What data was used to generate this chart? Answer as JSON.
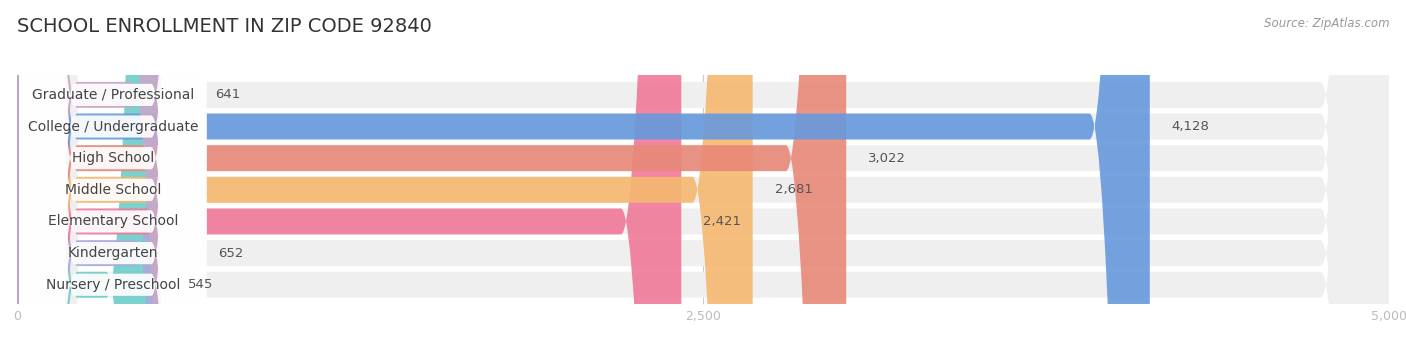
{
  "title": "School Enrollment in Zip Code 92840",
  "source": "Source: ZipAtlas.com",
  "categories": [
    "Nursery / Preschool",
    "Kindergarten",
    "Elementary School",
    "Middle School",
    "High School",
    "College / Undergraduate",
    "Graduate / Professional"
  ],
  "values": [
    545,
    652,
    2421,
    2681,
    3022,
    4128,
    641
  ],
  "bar_colors": [
    "#6dccc8",
    "#aaaadd",
    "#f07898",
    "#f5b870",
    "#e88878",
    "#6699dd",
    "#c8a8c8"
  ],
  "row_bg_color": "#efefef",
  "xlim": [
    0,
    5000
  ],
  "xticks": [
    0,
    2500,
    5000
  ],
  "xtick_labels": [
    "0",
    "2,500",
    "5,000"
  ],
  "title_fontsize": 14,
  "label_fontsize": 10,
  "value_fontsize": 9.5,
  "bar_height": 0.68,
  "background_color": "#ffffff"
}
